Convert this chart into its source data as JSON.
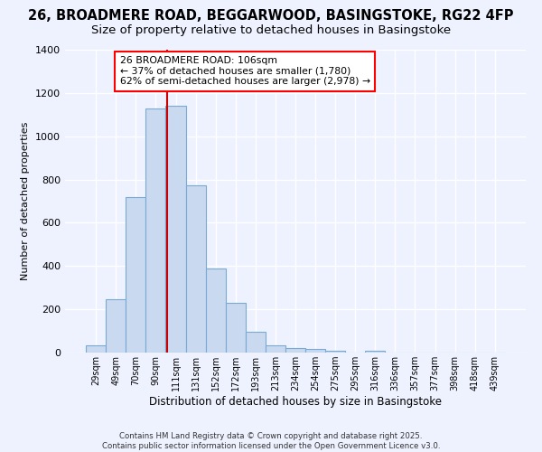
{
  "title": "26, BROADMERE ROAD, BEGGARWOOD, BASINGSTOKE, RG22 4FP",
  "subtitle": "Size of property relative to detached houses in Basingstoke",
  "xlabel": "Distribution of detached houses by size in Basingstoke",
  "ylabel": "Number of detached properties",
  "bar_labels": [
    "29sqm",
    "49sqm",
    "70sqm",
    "90sqm",
    "111sqm",
    "131sqm",
    "152sqm",
    "172sqm",
    "193sqm",
    "213sqm",
    "234sqm",
    "254sqm",
    "275sqm",
    "295sqm",
    "316sqm",
    "336sqm",
    "357sqm",
    "377sqm",
    "398sqm",
    "418sqm",
    "439sqm"
  ],
  "bar_values": [
    35,
    245,
    720,
    1130,
    1140,
    775,
    390,
    230,
    95,
    35,
    20,
    15,
    10,
    0,
    8,
    0,
    0,
    0,
    0,
    0,
    0
  ],
  "bar_color": "#c9d9f0",
  "bar_edgecolor": "#7aaad4",
  "vline_color": "#cc0000",
  "vline_position": 3.57,
  "ylim": [
    0,
    1400
  ],
  "yticks": [
    0,
    200,
    400,
    600,
    800,
    1000,
    1200,
    1400
  ],
  "annotation_title": "26 BROADMERE ROAD: 106sqm",
  "annotation_line1": "← 37% of detached houses are smaller (1,780)",
  "annotation_line2": "62% of semi-detached houses are larger (2,978) →",
  "background_color": "#eef2ff",
  "grid_color": "#ffffff",
  "footer1": "Contains HM Land Registry data © Crown copyright and database right 2025.",
  "footer2": "Contains public sector information licensed under the Open Government Licence v3.0."
}
